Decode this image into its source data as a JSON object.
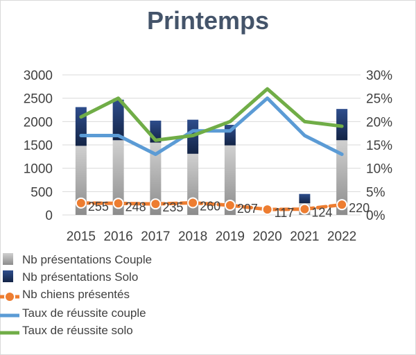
{
  "chart_data": {
    "type": "bar",
    "title": "Printemps",
    "categories": [
      "2015",
      "2016",
      "2017",
      "2018",
      "2019",
      "2020",
      "2021",
      "2022"
    ],
    "y_left": {
      "min": 0,
      "max": 3000,
      "ticks": [
        "0",
        "500",
        "1000",
        "1500",
        "2000",
        "2500",
        "3000"
      ]
    },
    "y_right": {
      "min": 0,
      "max": 0.3,
      "ticks": [
        "0%",
        "5%",
        "10%",
        "15%",
        "20%",
        "25%",
        "30%"
      ]
    },
    "series": [
      {
        "name": "Nb présentations Couple",
        "kind": "stacked-bar",
        "axis": "left",
        "color": "#a6a6a6",
        "values": [
          1480,
          1600,
          1550,
          1310,
          1490,
          0,
          250,
          1600
        ]
      },
      {
        "name": "Nb présentations Solo",
        "kind": "stacked-bar",
        "axis": "left",
        "color": "#1f3864",
        "values": [
          830,
          870,
          470,
          730,
          440,
          0,
          200,
          670
        ]
      },
      {
        "name": "Nb chiens présentés",
        "kind": "line",
        "axis": "left",
        "color": "#ed7d31",
        "values": [
          255,
          248,
          235,
          260,
          207,
          117,
          124,
          220
        ],
        "labels": [
          "255",
          "248",
          "235",
          "260",
          "207",
          "117",
          "124",
          "220"
        ]
      },
      {
        "name": "Taux de réussite couple",
        "kind": "line",
        "axis": "right",
        "color": "#5b9bd5",
        "values": [
          0.17,
          0.17,
          0.13,
          0.18,
          0.18,
          0.25,
          0.17,
          0.13
        ]
      },
      {
        "name": "Taux de réussite solo",
        "kind": "line",
        "axis": "right",
        "color": "#70ad47",
        "values": [
          0.21,
          0.25,
          0.16,
          0.17,
          0.2,
          0.27,
          0.2,
          0.19
        ]
      }
    ],
    "grid": true,
    "legend_position": "bottom"
  }
}
